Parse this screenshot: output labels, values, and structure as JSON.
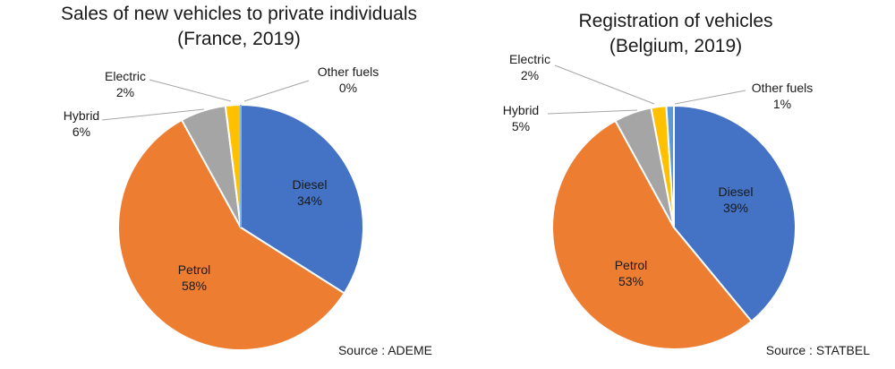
{
  "styles": {
    "background": "#ffffff",
    "text_color": "#1a1a1a",
    "leader_line_color": "#a6a6a6",
    "slice_border_color": "#ffffff"
  },
  "chart_data": [
    {
      "type": "pie",
      "title": "Sales of new vehicles to private individuals",
      "subtitle": "(France, 2019)",
      "source": "Source : ADEME",
      "start_angle": "top",
      "direction": "clockwise",
      "legend": "none",
      "slices": [
        {
          "label": "Diesel",
          "value": 34,
          "value_label": "34%",
          "color": "#4472C4",
          "label_position": "inside"
        },
        {
          "label": "Petrol",
          "value": 58,
          "value_label": "58%",
          "color": "#ED7D31",
          "label_position": "inside"
        },
        {
          "label": "Hybrid",
          "value": 6,
          "value_label": "6%",
          "color": "#A5A5A5",
          "label_position": "outside"
        },
        {
          "label": "Electric",
          "value": 2,
          "value_label": "2%",
          "color": "#FFC000",
          "label_position": "outside"
        },
        {
          "label": "Other fuels",
          "value": 0,
          "value_label": "0%",
          "color": "#5B9BD5",
          "label_position": "outside"
        }
      ]
    },
    {
      "type": "pie",
      "title": "Registration of vehicles",
      "subtitle": "(Belgium, 2019)",
      "source": "Source : STATBEL",
      "start_angle": "top",
      "direction": "clockwise",
      "legend": "none",
      "slices": [
        {
          "label": "Diesel",
          "value": 39,
          "value_label": "39%",
          "color": "#4472C4",
          "label_position": "inside"
        },
        {
          "label": "Petrol",
          "value": 53,
          "value_label": "53%",
          "color": "#ED7D31",
          "label_position": "inside"
        },
        {
          "label": "Hybrid",
          "value": 5,
          "value_label": "5%",
          "color": "#A5A5A5",
          "label_position": "outside"
        },
        {
          "label": "Electric",
          "value": 2,
          "value_label": "2%",
          "color": "#FFC000",
          "label_position": "outside"
        },
        {
          "label": "Other fuels",
          "value": 1,
          "value_label": "1%",
          "color": "#5B9BD5",
          "label_position": "outside"
        }
      ]
    }
  ]
}
